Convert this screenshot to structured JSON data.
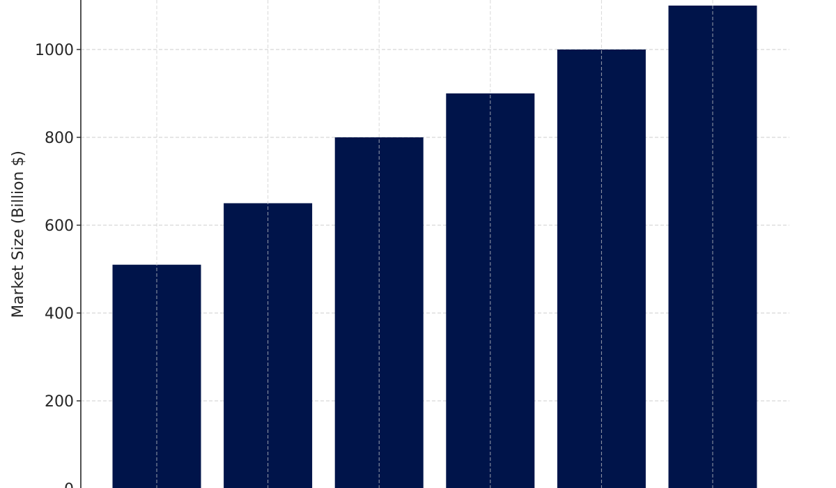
{
  "chart_data": {
    "type": "bar",
    "title": "",
    "xlabel": "",
    "ylabel": "Market Size (Billion $)",
    "categories": [
      "",
      "",
      "",
      "",
      "",
      ""
    ],
    "values": [
      510,
      650,
      800,
      900,
      1000,
      1100
    ],
    "ylim": [
      0,
      1100
    ],
    "yticks": [
      "0",
      "200",
      "400",
      "600",
      "800",
      "1000"
    ],
    "grid": true,
    "grid_style": "dashed",
    "bar_color": "#00144a",
    "grid_color": "#cccccc"
  }
}
